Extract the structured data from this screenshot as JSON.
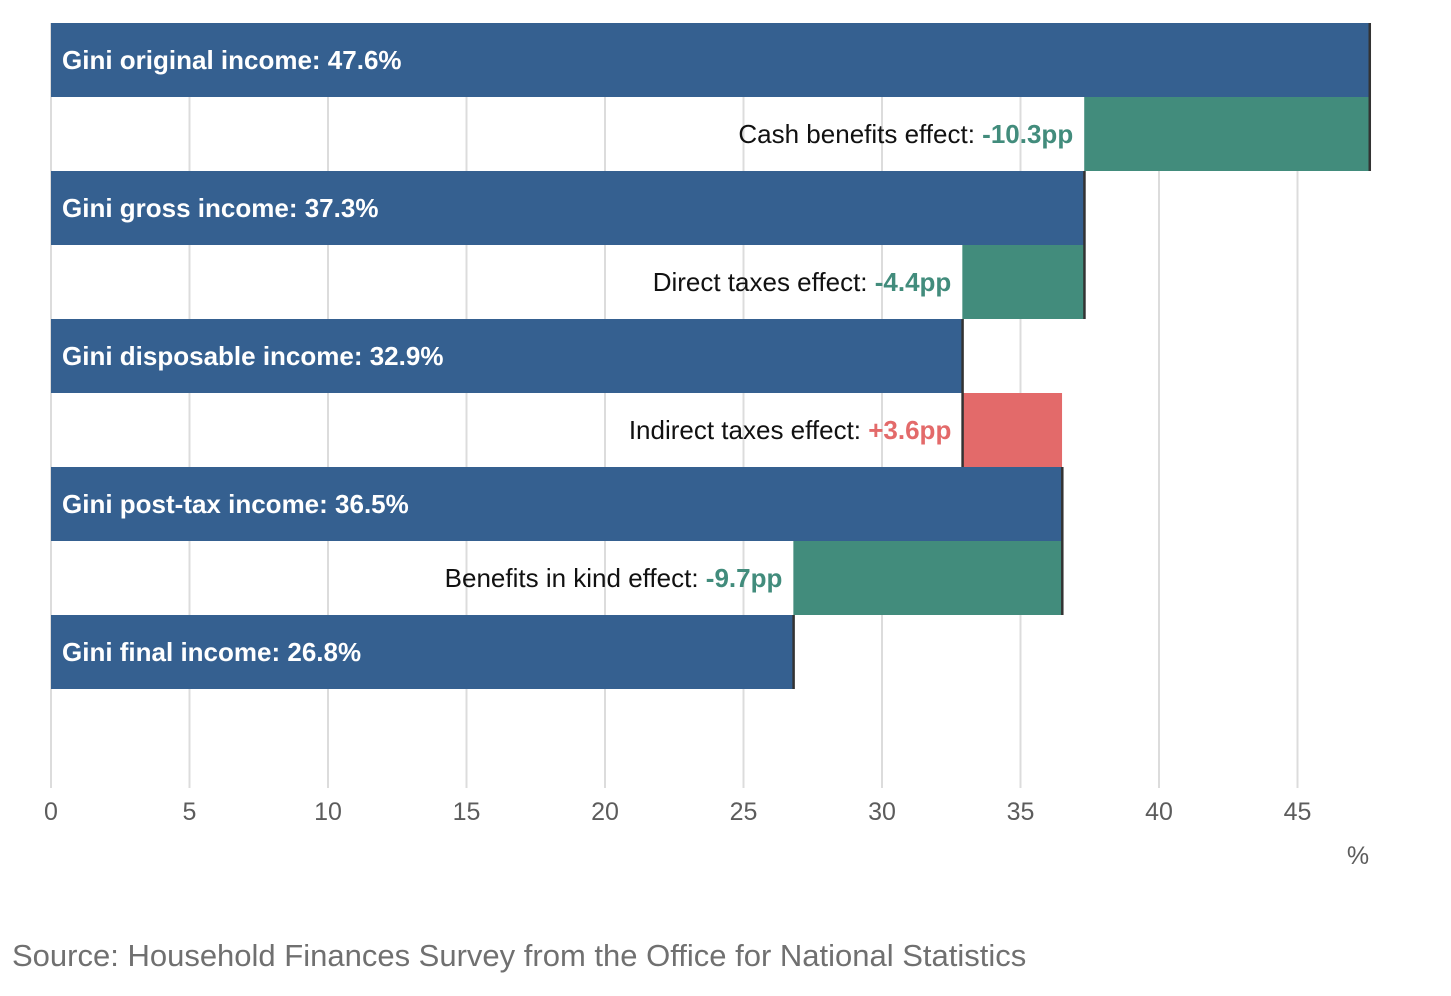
{
  "chart_data": {
    "type": "bar",
    "orientation": "horizontal",
    "subtype": "waterfall",
    "title": "",
    "xlabel": "%",
    "ylabel": "",
    "xlim": [
      0,
      47.6
    ],
    "xticks": [
      0,
      5,
      10,
      15,
      20,
      25,
      30,
      35,
      40,
      45
    ],
    "grid": true,
    "rows": [
      {
        "kind": "total",
        "name": "Gini original income",
        "label": "Gini original income: 47.6%",
        "value": 47.6
      },
      {
        "kind": "effect",
        "name": "Cash benefits effect",
        "label": "Cash benefits effect: ",
        "value_text": "-10.3pp",
        "from": 47.6,
        "to": 37.3,
        "delta": -10.3
      },
      {
        "kind": "total",
        "name": "Gini gross income",
        "label": "Gini gross income: 37.3%",
        "value": 37.3
      },
      {
        "kind": "effect",
        "name": "Direct taxes effect",
        "label": "Direct taxes effect: ",
        "value_text": "-4.4pp",
        "from": 37.3,
        "to": 32.9,
        "delta": -4.4
      },
      {
        "kind": "total",
        "name": "Gini disposable income",
        "label": "Gini disposable income: 32.9%",
        "value": 32.9
      },
      {
        "kind": "effect",
        "name": "Indirect taxes effect",
        "label": "Indirect taxes effect: ",
        "value_text": "+3.6pp",
        "from": 32.9,
        "to": 36.5,
        "delta": 3.6
      },
      {
        "kind": "total",
        "name": "Gini post-tax income",
        "label": "Gini post-tax income: 36.5%",
        "value": 36.5
      },
      {
        "kind": "effect",
        "name": "Benefits in kind effect",
        "label": "Benefits in kind effect: ",
        "value_text": "-9.7pp",
        "from": 36.5,
        "to": 26.8,
        "delta": -9.7
      },
      {
        "kind": "total",
        "name": "Gini final income",
        "label": "Gini final income: 26.8%",
        "value": 26.8
      }
    ]
  },
  "colors": {
    "total_bar": "#356090",
    "decrease": "#428c7c",
    "increase": "#e36a6a",
    "connector": "#333333"
  },
  "source": "Source: Household Finances Survey from the Office for National Statistics"
}
